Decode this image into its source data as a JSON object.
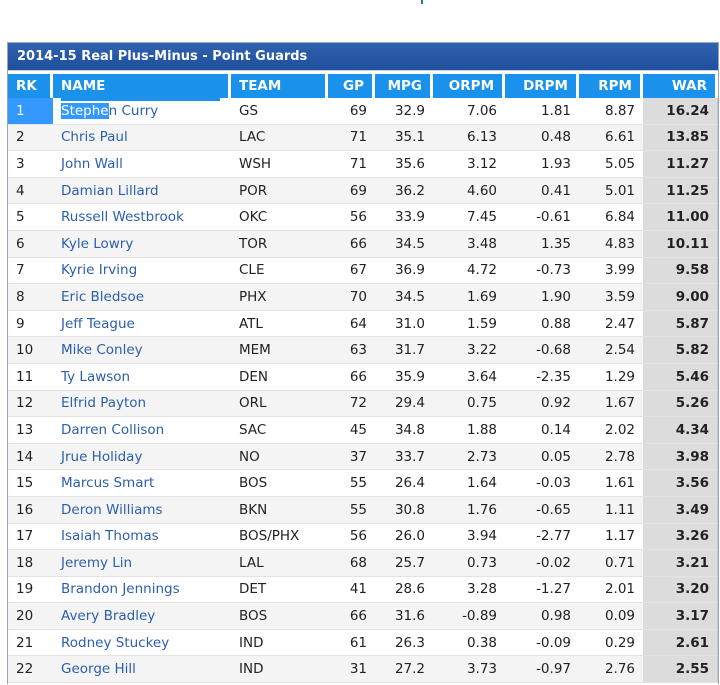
{
  "title": "2014-15 Real Plus-Minus - Point Guards",
  "columns": [
    "RK",
    "NAME",
    "TEAM",
    "GP",
    "MPG",
    "ORPM",
    "DRPM",
    "RPM",
    "WAR"
  ],
  "rows": [
    {
      "rk": "1",
      "name_sel": "Stephe",
      "name_rest": "n Curry",
      "name": "Stephen Curry",
      "team": "GS",
      "gp": "69",
      "mpg": "32.9",
      "orpm": "7.06",
      "drpm": "1.81",
      "rpm": "8.87",
      "war": "16.24"
    },
    {
      "rk": "2",
      "name": "Chris Paul",
      "team": "LAC",
      "gp": "71",
      "mpg": "35.1",
      "orpm": "6.13",
      "drpm": "0.48",
      "rpm": "6.61",
      "war": "13.85"
    },
    {
      "rk": "3",
      "name": "John Wall",
      "team": "WSH",
      "gp": "71",
      "mpg": "35.6",
      "orpm": "3.12",
      "drpm": "1.93",
      "rpm": "5.05",
      "war": "11.27"
    },
    {
      "rk": "4",
      "name": "Damian Lillard",
      "team": "POR",
      "gp": "69",
      "mpg": "36.2",
      "orpm": "4.60",
      "drpm": "0.41",
      "rpm": "5.01",
      "war": "11.25"
    },
    {
      "rk": "5",
      "name": "Russell Westbrook",
      "team": "OKC",
      "gp": "56",
      "mpg": "33.9",
      "orpm": "7.45",
      "drpm": "-0.61",
      "rpm": "6.84",
      "war": "11.00"
    },
    {
      "rk": "6",
      "name": "Kyle Lowry",
      "team": "TOR",
      "gp": "66",
      "mpg": "34.5",
      "orpm": "3.48",
      "drpm": "1.35",
      "rpm": "4.83",
      "war": "10.11"
    },
    {
      "rk": "7",
      "name": "Kyrie Irving",
      "team": "CLE",
      "gp": "67",
      "mpg": "36.9",
      "orpm": "4.72",
      "drpm": "-0.73",
      "rpm": "3.99",
      "war": "9.58"
    },
    {
      "rk": "8",
      "name": "Eric Bledsoe",
      "team": "PHX",
      "gp": "70",
      "mpg": "34.5",
      "orpm": "1.69",
      "drpm": "1.90",
      "rpm": "3.59",
      "war": "9.00"
    },
    {
      "rk": "9",
      "name": "Jeff Teague",
      "team": "ATL",
      "gp": "64",
      "mpg": "31.0",
      "orpm": "1.59",
      "drpm": "0.88",
      "rpm": "2.47",
      "war": "5.87"
    },
    {
      "rk": "10",
      "name": "Mike Conley",
      "team": "MEM",
      "gp": "63",
      "mpg": "31.7",
      "orpm": "3.22",
      "drpm": "-0.68",
      "rpm": "2.54",
      "war": "5.82"
    },
    {
      "rk": "11",
      "name": "Ty Lawson",
      "team": "DEN",
      "gp": "66",
      "mpg": "35.9",
      "orpm": "3.64",
      "drpm": "-2.35",
      "rpm": "1.29",
      "war": "5.46"
    },
    {
      "rk": "12",
      "name": "Elfrid Payton",
      "team": "ORL",
      "gp": "72",
      "mpg": "29.4",
      "orpm": "0.75",
      "drpm": "0.92",
      "rpm": "1.67",
      "war": "5.26"
    },
    {
      "rk": "13",
      "name": "Darren Collison",
      "team": "SAC",
      "gp": "45",
      "mpg": "34.8",
      "orpm": "1.88",
      "drpm": "0.14",
      "rpm": "2.02",
      "war": "4.34"
    },
    {
      "rk": "14",
      "name": "Jrue Holiday",
      "team": "NO",
      "gp": "37",
      "mpg": "33.7",
      "orpm": "2.73",
      "drpm": "0.05",
      "rpm": "2.78",
      "war": "3.98"
    },
    {
      "rk": "15",
      "name": "Marcus Smart",
      "team": "BOS",
      "gp": "55",
      "mpg": "26.4",
      "orpm": "1.64",
      "drpm": "-0.03",
      "rpm": "1.61",
      "war": "3.56"
    },
    {
      "rk": "16",
      "name": "Deron Williams",
      "team": "BKN",
      "gp": "55",
      "mpg": "30.8",
      "orpm": "1.76",
      "drpm": "-0.65",
      "rpm": "1.11",
      "war": "3.49"
    },
    {
      "rk": "17",
      "name": "Isaiah Thomas",
      "team": "BOS/PHX",
      "gp": "56",
      "mpg": "26.0",
      "orpm": "3.94",
      "drpm": "-2.77",
      "rpm": "1.17",
      "war": "3.26"
    },
    {
      "rk": "18",
      "name": "Jeremy Lin",
      "team": "LAL",
      "gp": "68",
      "mpg": "25.7",
      "orpm": "0.73",
      "drpm": "-0.02",
      "rpm": "0.71",
      "war": "3.21"
    },
    {
      "rk": "19",
      "name": "Brandon Jennings",
      "team": "DET",
      "gp": "41",
      "mpg": "28.6",
      "orpm": "3.28",
      "drpm": "-1.27",
      "rpm": "2.01",
      "war": "3.20"
    },
    {
      "rk": "20",
      "name": "Avery Bradley",
      "team": "BOS",
      "gp": "66",
      "mpg": "31.6",
      "orpm": "-0.89",
      "drpm": "0.98",
      "rpm": "0.09",
      "war": "3.17"
    },
    {
      "rk": "21",
      "name": "Rodney Stuckey",
      "team": "IND",
      "gp": "61",
      "mpg": "26.3",
      "orpm": "0.38",
      "drpm": "-0.09",
      "rpm": "0.29",
      "war": "2.61"
    },
    {
      "rk": "22",
      "name": "George Hill",
      "team": "IND",
      "gp": "31",
      "mpg": "27.2",
      "orpm": "3.73",
      "drpm": "-0.97",
      "rpm": "2.76",
      "war": "2.55"
    }
  ]
}
